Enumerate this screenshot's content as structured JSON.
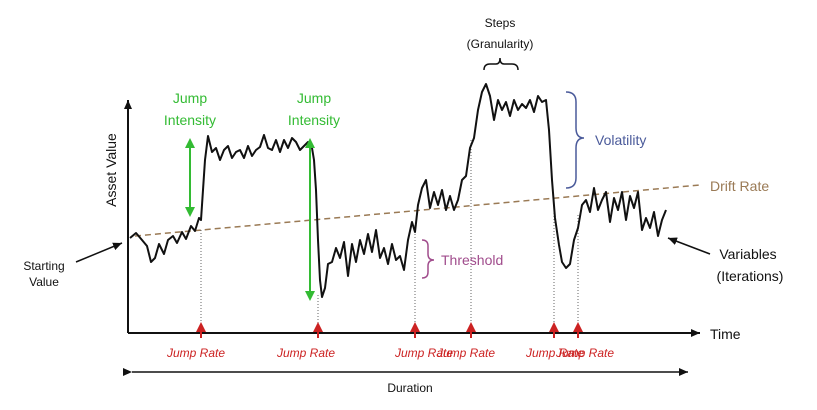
{
  "colors": {
    "jump_intensity": "#33bb33",
    "jump_rate": "#cc2222",
    "threshold": "#a04c8c",
    "volatility": "#4a5a9a",
    "drift": "#9a7a55",
    "line": "#111111"
  },
  "labels": {
    "y_axis": "Asset Value",
    "x_axis": "Time",
    "starting_value_1": "Starting",
    "starting_value_2": "Value",
    "jump_intensity_1a": "Jump",
    "jump_intensity_1b": "Intensity",
    "jump_intensity_2a": "Jump",
    "jump_intensity_2b": "Intensity",
    "steps": "Steps",
    "granularity": "(Granularity)",
    "volatility": "Volatility",
    "drift_rate": "Drift Rate",
    "threshold": "Threshold",
    "variables": "Variables",
    "iterations": "(Iterations)",
    "duration": "Duration",
    "jump_rates": [
      "Jump Rate",
      "Jump Rate",
      "Jump Rate",
      "Jump Rate",
      "Jump Rate",
      "Jump Rate"
    ]
  }
}
